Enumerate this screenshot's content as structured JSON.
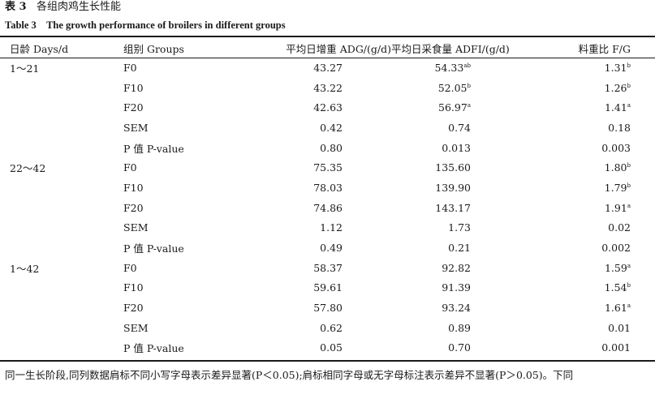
{
  "caption": {
    "cn_label": "表 3",
    "cn_title": "各组肉鸡生长性能",
    "en_label": "Table 3",
    "en_title": "The growth performance of broilers in different groups"
  },
  "table": {
    "headers": [
      "日龄 Days/d",
      "组别 Groups",
      "平均日增重 ADG/(g/d)",
      "平均日采食量 ADFI/(g/d)",
      "料重比 F/G"
    ],
    "rows": [
      {
        "period": "1～21",
        "group": "F0",
        "adg": "43.27",
        "adfi": "54.33",
        "adfi_sup": "ab",
        "fg": "1.31",
        "fg_sup": "b"
      },
      {
        "period": "",
        "group": "F10",
        "adg": "43.22",
        "adfi": "52.05",
        "adfi_sup": "b",
        "fg": "1.26",
        "fg_sup": "b"
      },
      {
        "period": "",
        "group": "F20",
        "adg": "42.63",
        "adfi": "56.97",
        "adfi_sup": "a",
        "fg": "1.41",
        "fg_sup": "a"
      },
      {
        "period": "",
        "group": "SEM",
        "adg": "0.42",
        "adfi": "0.74",
        "adfi_sup": "",
        "fg": "0.18",
        "fg_sup": ""
      },
      {
        "period": "",
        "group": "P 值 P-value",
        "adg": "0.80",
        "adfi": "0.013",
        "adfi_sup": "",
        "fg": "0.003",
        "fg_sup": ""
      },
      {
        "period": "22～42",
        "group": "F0",
        "adg": "75.35",
        "adfi": "135.60",
        "adfi_sup": "",
        "fg": "1.80",
        "fg_sup": "b"
      },
      {
        "period": "",
        "group": "F10",
        "adg": "78.03",
        "adfi": "139.90",
        "adfi_sup": "",
        "fg": "1.79",
        "fg_sup": "b"
      },
      {
        "period": "",
        "group": "F20",
        "adg": "74.86",
        "adfi": "143.17",
        "adfi_sup": "",
        "fg": "1.91",
        "fg_sup": "a"
      },
      {
        "period": "",
        "group": "SEM",
        "adg": "1.12",
        "adfi": "1.73",
        "adfi_sup": "",
        "fg": "0.02",
        "fg_sup": ""
      },
      {
        "period": "",
        "group": "P 值 P-value",
        "adg": "0.49",
        "adfi": "0.21",
        "adfi_sup": "",
        "fg": "0.002",
        "fg_sup": ""
      },
      {
        "period": "1～42",
        "group": "F0",
        "adg": "58.37",
        "adfi": "92.82",
        "adfi_sup": "",
        "fg": "1.59",
        "fg_sup": "a"
      },
      {
        "period": "",
        "group": "F10",
        "adg": "59.61",
        "adfi": "91.39",
        "adfi_sup": "",
        "fg": "1.54",
        "fg_sup": "b"
      },
      {
        "period": "",
        "group": "F20",
        "adg": "57.80",
        "adfi": "93.24",
        "adfi_sup": "",
        "fg": "1.61",
        "fg_sup": "a"
      },
      {
        "period": "",
        "group": "SEM",
        "adg": "0.62",
        "adfi": "0.89",
        "adfi_sup": "",
        "fg": "0.01",
        "fg_sup": ""
      },
      {
        "period": "",
        "group": "P 值 P-value",
        "adg": "0.05",
        "adfi": "0.70",
        "adfi_sup": "",
        "fg": "0.001",
        "fg_sup": ""
      }
    ]
  },
  "footnote": "同一生长阶段,同列数据肩标不同小写字母表示差异显著(P＜0.05);肩标相同字母或无字母标注表示差异不显著(P＞0.05)。下同"
}
